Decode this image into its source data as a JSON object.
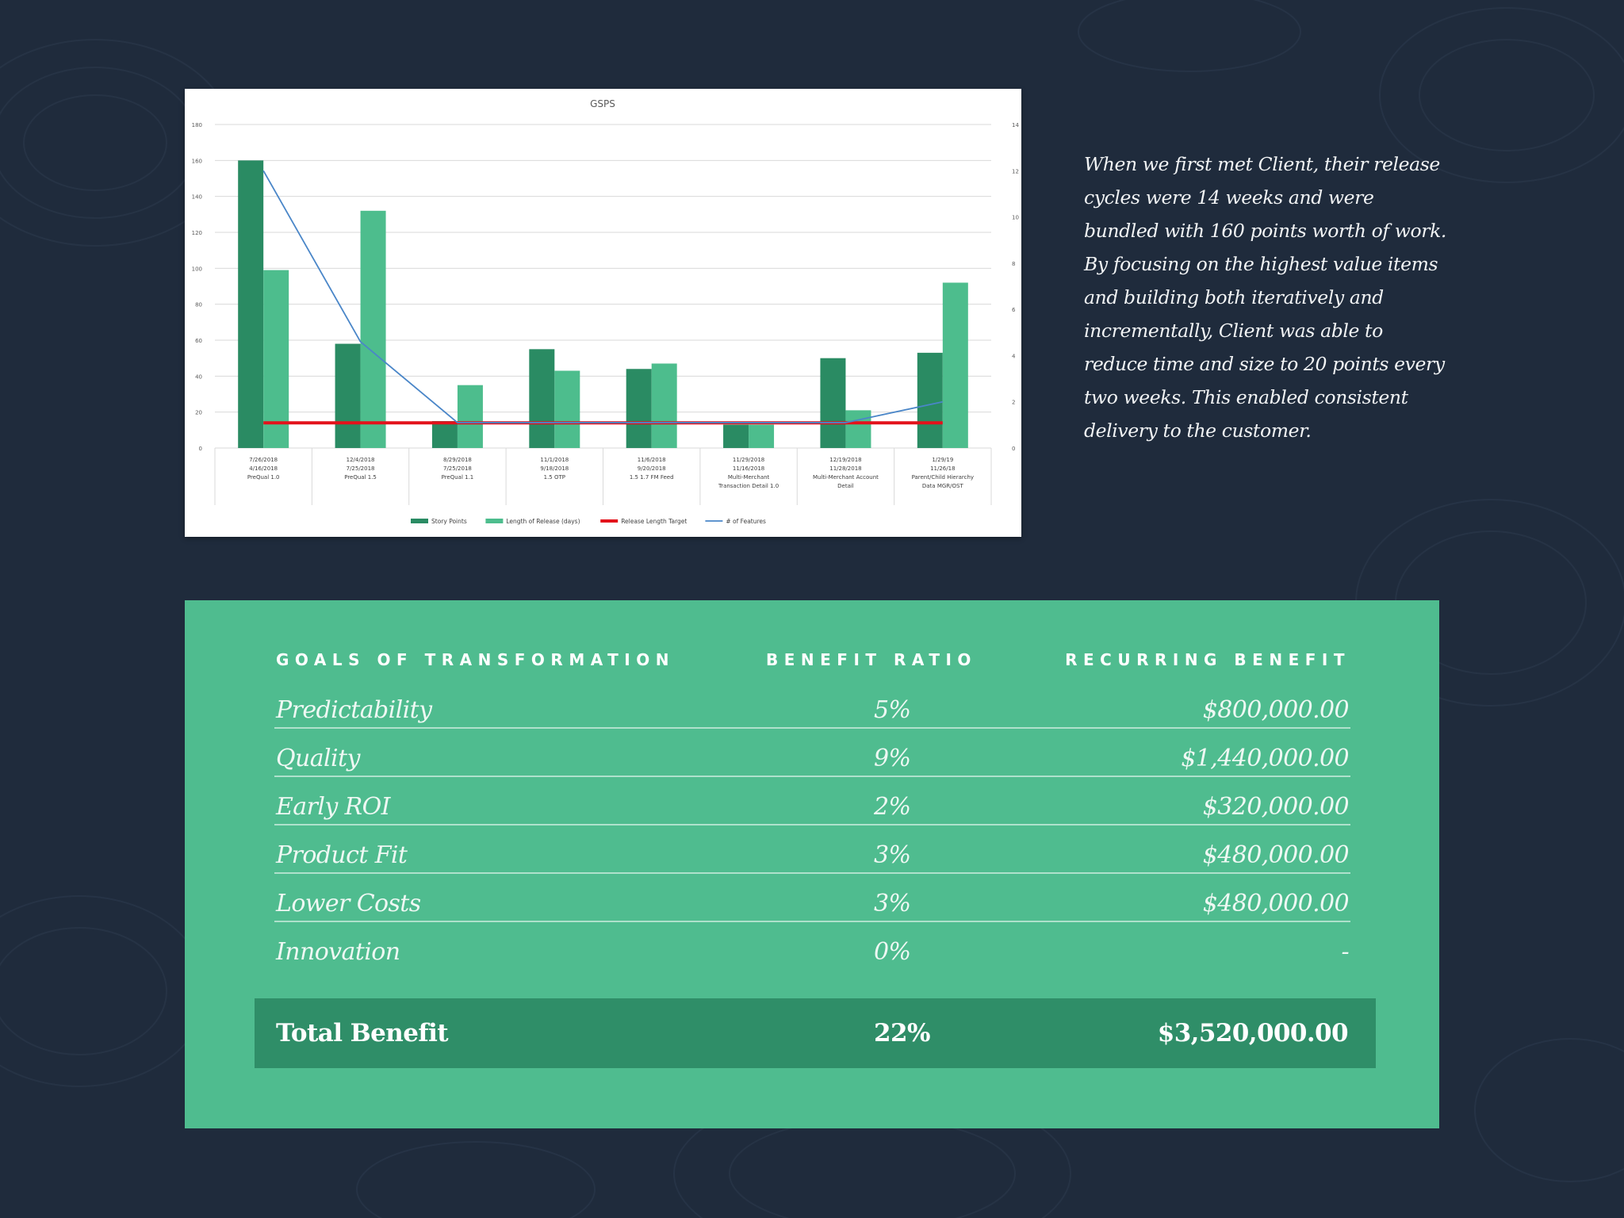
{
  "chart_data": {
    "type": "bar",
    "title": "GSPS",
    "categories": [
      [
        "7/26/2018",
        "4/16/2018",
        "PreQual 1.0"
      ],
      [
        "12/4/2018",
        "7/25/2018",
        "PreQual 1.5"
      ],
      [
        "8/29/2018",
        "7/25/2018",
        "PreQual 1.1"
      ],
      [
        "11/1/2018",
        "9/18/2018",
        "1.5 OTP"
      ],
      [
        "11/6/2018",
        "9/20/2018",
        "1.5 1.7 FM Feed"
      ],
      [
        "11/29/2018",
        "11/16/2018",
        "Multi-Merchant",
        "Transaction Detail 1.0"
      ],
      [
        "12/19/2018",
        "11/28/2018",
        "Multi-Merchant Account",
        "Detail"
      ],
      [
        "1/29/19",
        "11/26/18",
        "Parent/Child Hierarchy",
        "Data MGR/OST"
      ]
    ],
    "series": [
      {
        "name": "Story Points",
        "kind": "bar",
        "axis": "left",
        "color": "#2a8b63",
        "values": [
          160,
          58,
          15,
          55,
          44,
          13,
          50,
          53
        ]
      },
      {
        "name": "Length of Release (days)",
        "kind": "bar",
        "axis": "left",
        "color": "#4dbd8d",
        "values": [
          99,
          132,
          35,
          43,
          47,
          13,
          21,
          92
        ]
      },
      {
        "name": "Release Length Target",
        "kind": "line",
        "axis": "left",
        "color": "#e3121b",
        "values": [
          14,
          14,
          14,
          14,
          14,
          14,
          14,
          14
        ]
      },
      {
        "name": "# of Features",
        "kind": "line",
        "axis": "right",
        "color": "#4a86c8",
        "values": [
          12,
          4.6,
          1.1,
          1.1,
          1.1,
          1.1,
          1.1,
          2
        ]
      }
    ],
    "left_axis": {
      "min": 0,
      "max": 180,
      "ticks": [
        0,
        20,
        40,
        60,
        80,
        100,
        120,
        140,
        160,
        180
      ]
    },
    "right_axis": {
      "min": 0,
      "max": 14,
      "ticks": [
        0,
        2,
        4,
        6,
        8,
        10,
        12,
        14
      ]
    },
    "grid": true,
    "legend": "bottom"
  },
  "narrative": "When we first met Client, their release cycles were 14 weeks and were bundled with 160 points worth of work. By focusing on the highest value items and building both iteratively and incrementally, Client was able to reduce time and size to 20 points every two weeks. This enabled consistent delivery to the customer.",
  "table": {
    "headers": {
      "goal": "GOALS OF TRANSFORMATION",
      "ratio": "BENEFIT RATIO",
      "recurring": "RECURRING BENEFIT"
    },
    "rows": [
      {
        "goal": "Predictability",
        "ratio": "5%",
        "recurring": "$800,000.00"
      },
      {
        "goal": "Quality",
        "ratio": "9%",
        "recurring": "$1,440,000.00"
      },
      {
        "goal": "Early ROI",
        "ratio": "2%",
        "recurring": "$320,000.00"
      },
      {
        "goal": "Product Fit",
        "ratio": "3%",
        "recurring": "$480,000.00"
      },
      {
        "goal": "Lower Costs",
        "ratio": "3%",
        "recurring": "$480,000.00"
      },
      {
        "goal": "Innovation",
        "ratio": "0%",
        "recurring": "-"
      }
    ],
    "total": {
      "goal": "Total Benefit",
      "ratio": "22%",
      "recurring": "$3,520,000.00"
    }
  },
  "colors": {
    "background": "#1f2b3c",
    "panel": "#4fbc8f",
    "total_row": "#2f8e68"
  }
}
